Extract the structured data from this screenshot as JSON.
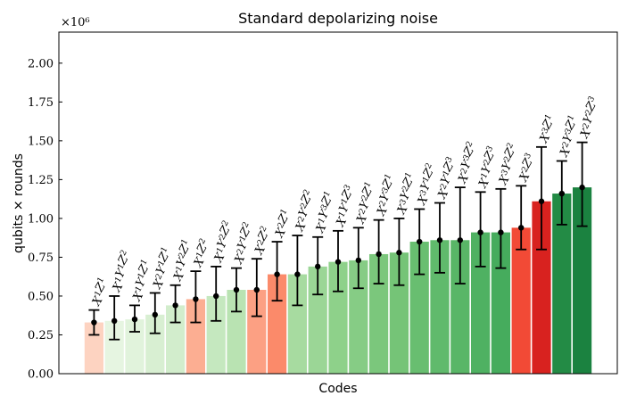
{
  "chart_data": {
    "type": "bar",
    "title": "Standard depolarizing noise",
    "xlabel": "Codes",
    "ylabel": "qubits × rounds",
    "scale_note": "×10⁶",
    "ylim": [
      0,
      2.2
    ],
    "yticks": [
      0.0,
      0.25,
      0.5,
      0.75,
      1.0,
      1.25,
      1.5,
      1.75,
      2.0
    ],
    "ytick_labels": [
      "0.00",
      "0.25",
      "0.50",
      "0.75",
      "1.00",
      "1.25",
      "1.50",
      "1.75",
      "2.00"
    ],
    "grid": false,
    "series": [
      {
        "categories": [
          [
            [
              "X",
              "1"
            ],
            [
              "Z",
              "1"
            ]
          ],
          [
            [
              "X",
              "1"
            ],
            [
              "Y",
              "1"
            ],
            [
              "Z",
              "2"
            ]
          ],
          [
            [
              "X",
              "1"
            ],
            [
              "Y",
              "1"
            ],
            [
              "Z",
              "1"
            ]
          ],
          [
            [
              "X",
              "2"
            ],
            [
              "Y",
              "1"
            ],
            [
              "Z",
              "1"
            ]
          ],
          [
            [
              "X",
              "1"
            ],
            [
              "Y",
              "2"
            ],
            [
              "Z",
              "1"
            ]
          ],
          [
            [
              "X",
              "1"
            ],
            [
              "Z",
              "2"
            ]
          ],
          [
            [
              "X",
              "1"
            ],
            [
              "Y",
              "2"
            ],
            [
              "Z",
              "2"
            ]
          ],
          [
            [
              "X",
              "2"
            ],
            [
              "Y",
              "1"
            ],
            [
              "Z",
              "2"
            ]
          ],
          [
            [
              "X",
              "2"
            ],
            [
              "Z",
              "2"
            ]
          ],
          [
            [
              "X",
              "2"
            ],
            [
              "Z",
              "1"
            ]
          ],
          [
            [
              "X",
              "2"
            ],
            [
              "Y",
              "2"
            ],
            [
              "Z",
              "2"
            ]
          ],
          [
            [
              "X",
              "1"
            ],
            [
              "Y",
              "3"
            ],
            [
              "Z",
              "1"
            ]
          ],
          [
            [
              "X",
              "1"
            ],
            [
              "Y",
              "1"
            ],
            [
              "Z",
              "3"
            ]
          ],
          [
            [
              "X",
              "2"
            ],
            [
              "Y",
              "2"
            ],
            [
              "Z",
              "1"
            ]
          ],
          [
            [
              "X",
              "2"
            ],
            [
              "Y",
              "3"
            ],
            [
              "Z",
              "1"
            ]
          ],
          [
            [
              "X",
              "3"
            ],
            [
              "Y",
              "2"
            ],
            [
              "Z",
              "1"
            ]
          ],
          [
            [
              "X",
              "3"
            ],
            [
              "Y",
              "1"
            ],
            [
              "Z",
              "2"
            ]
          ],
          [
            [
              "X",
              "2"
            ],
            [
              "Y",
              "1"
            ],
            [
              "Z",
              "3"
            ]
          ],
          [
            [
              "X",
              "2"
            ],
            [
              "Y",
              "3"
            ],
            [
              "Z",
              "2"
            ]
          ],
          [
            [
              "X",
              "1"
            ],
            [
              "Y",
              "2"
            ],
            [
              "Z",
              "3"
            ]
          ],
          [
            [
              "X",
              "3"
            ],
            [
              "Y",
              "2"
            ],
            [
              "Z",
              "2"
            ]
          ],
          [
            [
              "X",
              "2"
            ],
            [
              "Z",
              "3"
            ]
          ],
          [
            [
              "X",
              "3"
            ],
            [
              "Z",
              "1"
            ]
          ],
          [
            [
              "X",
              "2"
            ],
            [
              "Y",
              "3"
            ],
            [
              "Z",
              "1"
            ]
          ],
          [
            [
              "X",
              "2"
            ],
            [
              "Y",
              "2"
            ],
            [
              "Z",
              "3"
            ]
          ]
        ],
        "values": [
          0.33,
          0.34,
          0.35,
          0.38,
          0.44,
          0.48,
          0.5,
          0.54,
          0.54,
          0.64,
          0.64,
          0.69,
          0.72,
          0.73,
          0.77,
          0.78,
          0.85,
          0.86,
          0.86,
          0.91,
          0.91,
          0.94,
          1.11,
          1.16,
          1.2
        ],
        "err_low": [
          0.25,
          0.22,
          0.27,
          0.26,
          0.33,
          0.33,
          0.34,
          0.4,
          0.37,
          0.47,
          0.44,
          0.51,
          0.53,
          0.55,
          0.58,
          0.57,
          0.64,
          0.65,
          0.58,
          0.69,
          0.68,
          0.8,
          0.8,
          0.96,
          0.95
        ],
        "err_high": [
          0.41,
          0.5,
          0.44,
          0.52,
          0.57,
          0.66,
          0.69,
          0.68,
          0.74,
          0.85,
          0.89,
          0.88,
          0.92,
          0.94,
          0.99,
          1.0,
          1.06,
          1.1,
          1.2,
          1.17,
          1.19,
          1.21,
          1.46,
          1.37,
          1.49
        ],
        "colors": [
          "#fdd3c1",
          "#e6f5e1",
          "#e1f3dc",
          "#d8efd2",
          "#d2edcc",
          "#fcae92",
          "#c5e8bf",
          "#b9e3b2",
          "#fca083",
          "#fb8a6a",
          "#a7dba0",
          "#9bd696",
          "#8ed18a",
          "#86cc85",
          "#7bc77c",
          "#75c477",
          "#68be70",
          "#60ba6c",
          "#59b667",
          "#4fb162",
          "#46ac5d",
          "#f24a36",
          "#d8221f",
          "#238b45",
          "#1b8240"
        ]
      }
    ]
  }
}
